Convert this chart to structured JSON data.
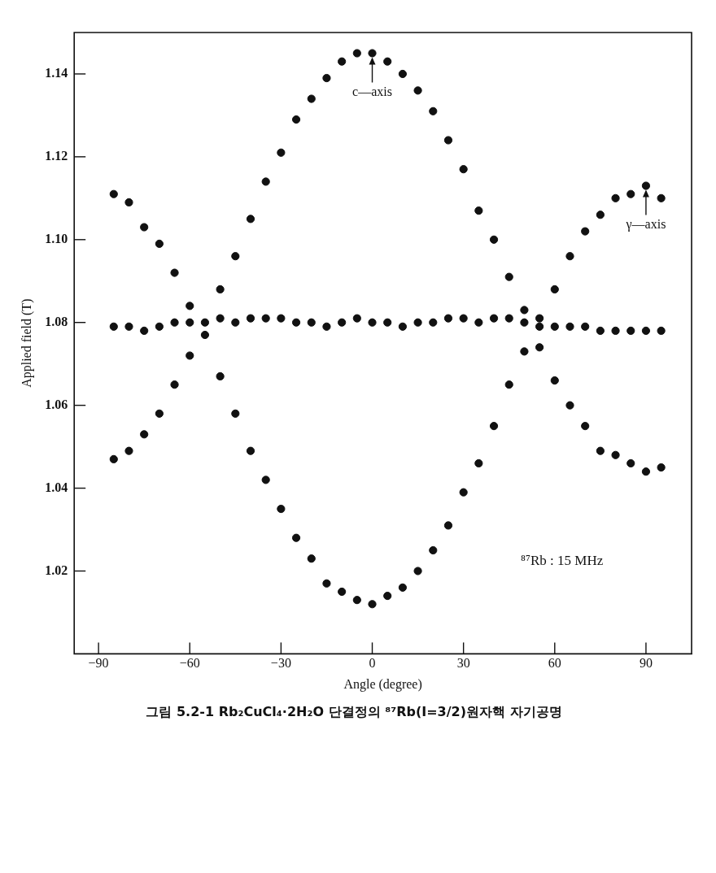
{
  "chart_data": {
    "type": "scatter",
    "title": "그림 5.2-1 Rb₂CuCl₄·2H₂O 단결정의 ⁸⁷Rb(I=3/2)원자핵 자기공명",
    "xlabel": "Angle (degree)",
    "ylabel": "Applied field (T)",
    "x": [
      -85,
      -80,
      -75,
      -70,
      -65,
      -60,
      -55,
      -50,
      -45,
      -40,
      -35,
      -30,
      -25,
      -20,
      -15,
      -10,
      -5,
      0,
      5,
      10,
      15,
      20,
      25,
      30,
      35,
      40,
      45,
      50,
      55,
      60,
      65,
      70,
      75,
      80,
      85,
      90,
      95
    ],
    "series": [
      {
        "color": "#111111",
        "values": [
          1.047,
          1.049,
          1.053,
          1.058,
          1.065,
          1.072,
          null,
          1.088,
          1.096,
          1.105,
          1.114,
          1.121,
          1.129,
          1.134,
          1.139,
          1.143,
          1.145,
          1.145,
          1.143,
          1.14,
          1.136,
          1.131,
          1.124,
          1.117,
          1.107,
          1.1,
          1.091,
          1.083,
          1.074,
          1.066,
          1.06,
          1.055,
          1.049,
          1.048,
          1.046,
          1.044,
          1.045
        ]
      },
      {
        "color": "#111111",
        "values": [
          1.111,
          1.109,
          1.103,
          1.099,
          1.092,
          1.084,
          1.077,
          1.067,
          1.058,
          1.049,
          1.042,
          1.035,
          1.028,
          1.023,
          1.017,
          1.015,
          1.013,
          1.012,
          1.014,
          1.016,
          1.02,
          1.025,
          1.031,
          1.039,
          1.046,
          1.055,
          1.065,
          1.073,
          1.081,
          1.088,
          1.096,
          1.102,
          1.106,
          1.11,
          1.111,
          1.113,
          1.11
        ]
      },
      {
        "color": "#111111",
        "values": [
          1.079,
          1.079,
          1.078,
          1.079,
          1.08,
          1.08,
          1.08,
          1.081,
          1.08,
          1.081,
          1.081,
          1.081,
          1.08,
          1.08,
          1.079,
          1.08,
          1.081,
          1.08,
          1.08,
          1.079,
          1.08,
          1.08,
          1.081,
          1.081,
          1.08,
          1.081,
          1.081,
          1.08,
          1.079,
          1.079,
          1.079,
          1.079,
          1.078,
          1.078,
          1.078,
          1.078,
          1.078
        ]
      }
    ],
    "xlim": [
      -98,
      105
    ],
    "ylim": [
      1.0,
      1.15
    ],
    "xticks": [
      {
        "value": -90,
        "label": "−90"
      },
      {
        "value": -60,
        "label": "−60"
      },
      {
        "value": -30,
        "label": "−30"
      },
      0,
      30,
      60,
      90
    ],
    "yticks": [
      {
        "value": 1.02,
        "label": "1.02"
      },
      {
        "value": 1.04,
        "label": "1.04"
      },
      {
        "value": 1.06,
        "label": "1.06"
      },
      {
        "value": 1.08,
        "label": "1.08"
      },
      {
        "value": 1.1,
        "label": "1.10"
      },
      {
        "value": 1.12,
        "label": "1.12"
      },
      {
        "value": 1.14,
        "label": "1.14"
      }
    ],
    "marker": "circle",
    "annotations": [
      {
        "text": "c—axis",
        "x": 0,
        "y": 1.145
      },
      {
        "text": "γ—axis",
        "x": 90,
        "y": 1.113
      },
      "⁸⁷Rb : 15 MHz"
    ]
  }
}
